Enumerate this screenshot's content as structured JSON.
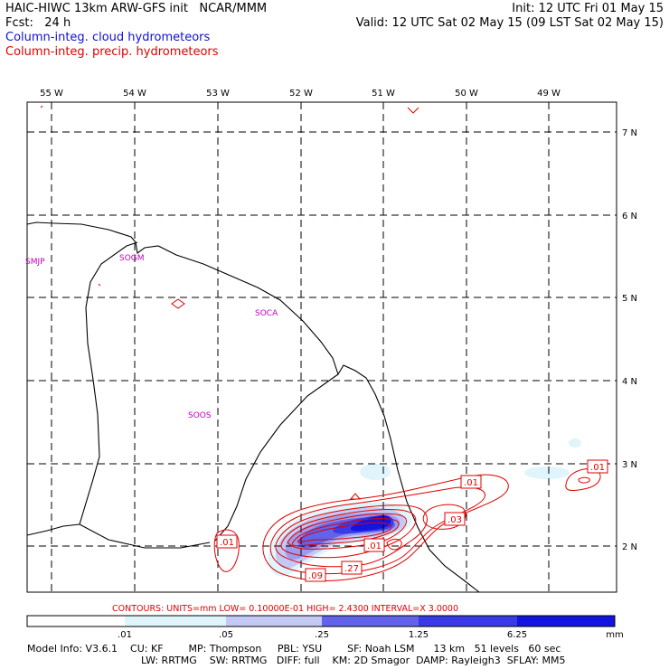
{
  "header": {
    "title_left": "HAIC-HIWC 13km ARW-GFS init   NCAR/MMM",
    "fcst": "Fcst:   24 h",
    "init": "Init: 12 UTC Fri 01 May 15",
    "valid": "Valid: 12 UTC Sat 02 May 15 (09 LST Sat 02 May 15)",
    "legend_cloud": "Column-integ. cloud hydrometeors",
    "legend_precip": "Column-integ. precip. hydrometeors"
  },
  "colors": {
    "cloud_legend": "#1010d0",
    "precip_legend": "#e00000",
    "contour": "#e00000",
    "station": "#c000c0",
    "fill_1": "#dff4fb",
    "fill_2": "#c4c8f4",
    "fill_3": "#9c9cef",
    "fill_4": "#6262ea",
    "fill_5": "#3a3ae6",
    "fill_6": "#1414e0"
  },
  "map": {
    "lon_labels": [
      "55 W",
      "54 W",
      "53 W",
      "52 W",
      "51 W",
      "50 W",
      "49 W"
    ],
    "lat_labels": [
      "7 N",
      "6 N",
      "5 N",
      "4 N",
      "3 N",
      "2 N"
    ],
    "stations": [
      "SMJP",
      "SOGM",
      "SOCA",
      "SOOS"
    ],
    "contour_labels": [
      ".01",
      ".01",
      ".03",
      ".01",
      ".01",
      ".27",
      ".09"
    ]
  },
  "colorbar": {
    "contours_line": "CONTOURS:  UNITS=mm   LOW= 0.10000E-01   HIGH=  2.4300     INTERVAL=X  3.0000",
    "ticks": [
      ".01",
      ".05",
      ".25",
      "1.25",
      "6.25"
    ],
    "units": "mm"
  },
  "footer": {
    "line1": "Model Info: V3.6.1    CU: KF        MP: Thompson     PBL: YSU        SF: Noah LSM      13 km   51 levels   60 sec",
    "line2": "LW: RRTMG    SW: RRTMG   DIFF: full    KM: 2D Smagor  DAMP: Rayleigh3  SFLAY: MM5"
  }
}
